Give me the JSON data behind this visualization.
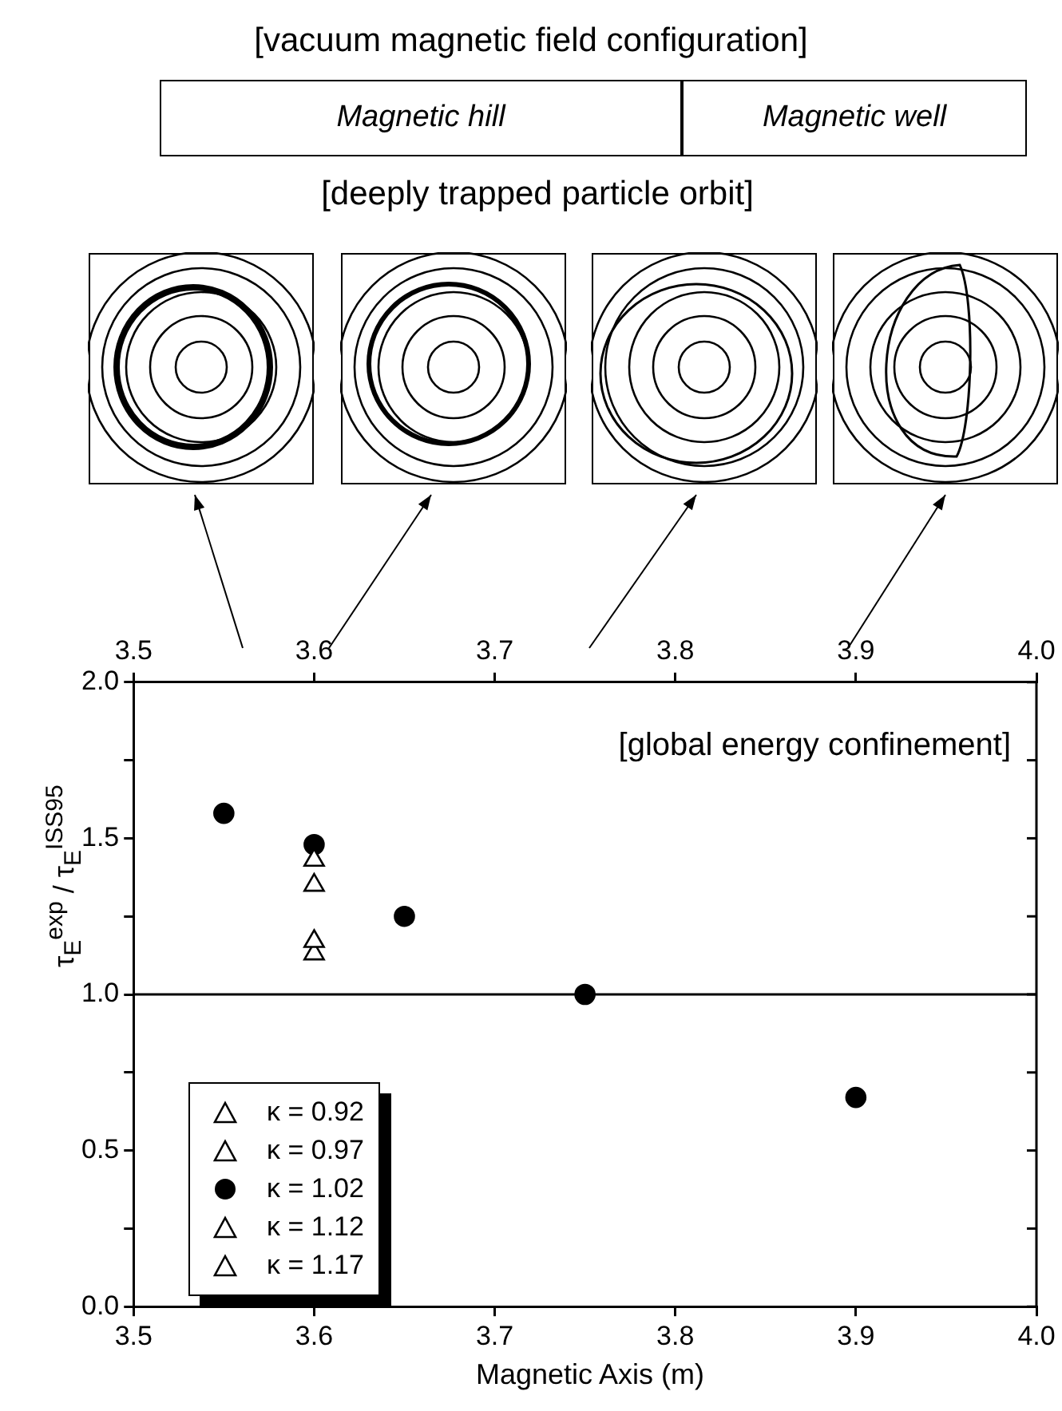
{
  "chart_data": {
    "type": "scatter",
    "title": "[vacuum magnetic field configuration]",
    "annotations": [
      "Magnetic hill",
      "Magnetic well",
      "[deeply trapped particle orbit]",
      "[global energy confinement]"
    ],
    "xlabel": "Magnetic Axis (m)",
    "ylabel": "τ$_{E}$$^{exp}$ / τ$_{E}$$^{ISS95}$",
    "xlim": [
      3.5,
      4.0
    ],
    "xticks": [
      3.5,
      3.6,
      3.7,
      3.8,
      3.9,
      {
        "value": 4.0,
        "label": "4.0"
      }
    ],
    "x2lim": [
      3.5,
      4.0
    ],
    "x2ticks": [
      3.5,
      3.6,
      3.7,
      3.8,
      3.9,
      {
        "value": 4.0,
        "label": "4.0"
      }
    ],
    "ylim": [
      0,
      2
    ],
    "yticks": [
      {
        "value": 0,
        "label": "0.0"
      },
      {
        "value": 0.25,
        "label": null
      },
      0.5,
      {
        "value": 0.75,
        "label": null
      },
      {
        "value": 1,
        "label": "1.0"
      },
      {
        "value": 1.25,
        "label": null
      },
      1.5,
      {
        "value": 1.75,
        "label": null
      },
      {
        "value": 2,
        "label": "2.0"
      }
    ],
    "grid": false,
    "legend": "bottom left",
    "ref_lines": [
      {
        "axis": "y",
        "value": 1.0,
        "color": "#000000"
      }
    ],
    "series": [
      {
        "name": "κ = 0.92",
        "color": "#000000",
        "marker": "triangle",
        "x": [
          3.6
        ],
        "values": [
          1.17
        ]
      },
      {
        "name": "κ = 0.97",
        "color": "#000000",
        "marker": "triangle",
        "x": [
          3.6
        ],
        "values": [
          1.43
        ]
      },
      {
        "name": "κ = 1.02",
        "color": "#000000",
        "marker": "circle",
        "x": [
          3.55,
          3.6,
          3.65,
          3.75,
          3.9
        ],
        "values": [
          1.58,
          1.48,
          1.25,
          1.0,
          0.67
        ]
      },
      {
        "name": "κ = 1.12",
        "color": "#000000",
        "marker": "triangle",
        "x": [
          3.6
        ],
        "values": [
          1.35
        ]
      },
      {
        "name": "κ = 1.17",
        "color": "#000000",
        "marker": "triangle",
        "x": [
          3.6
        ],
        "values": [
          1.13
        ]
      }
    ]
  }
}
